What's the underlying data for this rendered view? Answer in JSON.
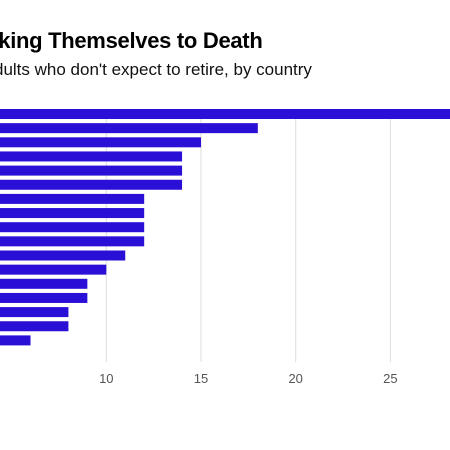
{
  "title": "rking Themselves to Death",
  "subtitle": "dults who don't expect to retire, by country",
  "colors": {
    "bar": "#2a0fd6",
    "grid": "#dddddd",
    "tick": "#555555"
  },
  "chart_data": {
    "type": "bar",
    "orientation": "horizontal",
    "title": "rking Themselves to Death",
    "subtitle": "dults who don't expect to retire, by country",
    "values": [
      30,
      18,
      15,
      14,
      14,
      14,
      12,
      12,
      12,
      12,
      11,
      10,
      9,
      9,
      8,
      8,
      6
    ],
    "xlim": [
      4,
      30
    ],
    "xticks": [
      10,
      15,
      20,
      25
    ],
    "xtick_labels": [
      "10",
      "15",
      "20",
      "25"
    ],
    "grid": true,
    "xlabel": "",
    "ylabel": ""
  }
}
